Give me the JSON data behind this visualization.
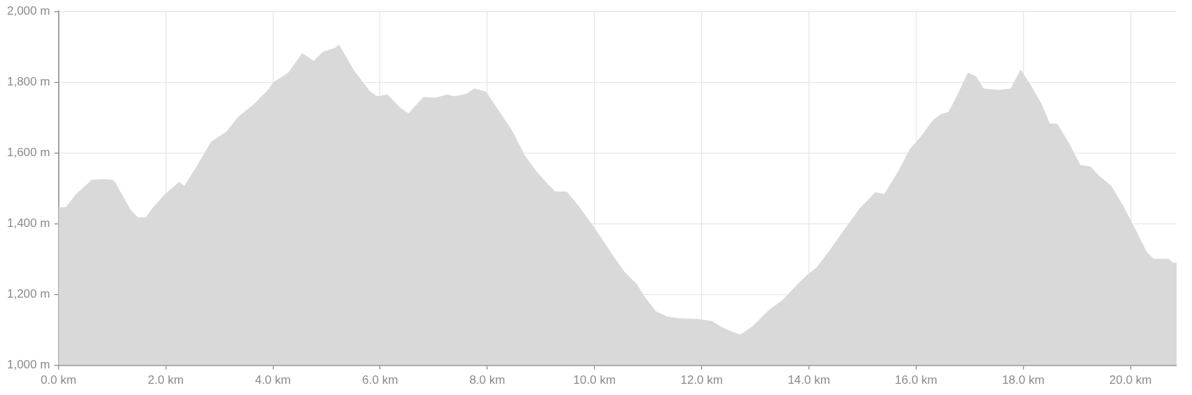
{
  "chart_data": {
    "type": "area",
    "x": [
      0,
      0.14,
      0.33,
      0.62,
      0.84,
      1.01,
      1.05,
      1.2,
      1.34,
      1.48,
      1.63,
      1.77,
      1.99,
      2.13,
      2.25,
      2.35,
      2.56,
      2.85,
      3.14,
      3.36,
      3.65,
      3.93,
      4.01,
      4.29,
      4.55,
      4.76,
      4.94,
      5.16,
      5.23,
      5.52,
      5.81,
      5.95,
      6.14,
      6.38,
      6.53,
      6.81,
      7.03,
      7.25,
      7.39,
      7.61,
      7.75,
      7.97,
      8.18,
      8.47,
      8.69,
      8.9,
      9.12,
      9.27,
      9.48,
      9.7,
      9.91,
      10.13,
      10.35,
      10.56,
      10.78,
      10.92,
      11.14,
      11.35,
      11.57,
      11.93,
      12.19,
      12.36,
      12.58,
      12.72,
      12.94,
      13.23,
      13.52,
      13.8,
      13.95,
      14.16,
      14.38,
      14.67,
      14.96,
      15.24,
      15.41,
      15.68,
      15.89,
      16.11,
      16.32,
      16.47,
      16.61,
      16.76,
      16.97,
      17.12,
      17.26,
      17.55,
      17.77,
      17.95,
      18.13,
      18.34,
      18.49,
      18.63,
      18.85,
      19.06,
      19.25,
      19.42,
      19.64,
      19.86,
      20.07,
      20.29,
      20.43,
      20.72,
      20.79,
      20.86
    ],
    "series": [
      {
        "color": "#d9d9d9",
        "values": [
          1446,
          1446,
          1483,
          1523,
          1525,
          1523,
          1517,
          1477,
          1439,
          1417,
          1417,
          1446,
          1483,
          1501,
          1517,
          1506,
          1556,
          1631,
          1660,
          1702,
          1737,
          1781,
          1799,
          1826,
          1881,
          1859,
          1885,
          1896,
          1905,
          1830,
          1773,
          1759,
          1764,
          1726,
          1711,
          1757,
          1755,
          1764,
          1759,
          1766,
          1781,
          1773,
          1726,
          1660,
          1594,
          1550,
          1512,
          1490,
          1490,
          1450,
          1406,
          1358,
          1307,
          1263,
          1230,
          1196,
          1152,
          1137,
          1132,
          1130,
          1124,
          1108,
          1093,
          1086,
          1108,
          1152,
          1185,
          1230,
          1252,
          1278,
          1322,
          1384,
          1444,
          1488,
          1483,
          1550,
          1611,
          1649,
          1693,
          1709,
          1715,
          1759,
          1826,
          1815,
          1781,
          1777,
          1781,
          1834,
          1792,
          1737,
          1682,
          1682,
          1627,
          1565,
          1561,
          1534,
          1506,
          1450,
          1389,
          1322,
          1300,
          1300,
          1289,
          1289
        ]
      }
    ],
    "xlim": [
      0,
      20.86
    ],
    "xticks": [
      {
        "value": 0,
        "label": "0.0 km"
      },
      {
        "value": 2,
        "label": "2.0 km"
      },
      {
        "value": 4,
        "label": "4.0 km"
      },
      {
        "value": 6,
        "label": "6.0 km"
      },
      {
        "value": 8,
        "label": "8.0 km"
      },
      {
        "value": 10,
        "label": "10.0 km"
      },
      {
        "value": 12,
        "label": "12.0 km"
      },
      {
        "value": 14,
        "label": "14.0 km"
      },
      {
        "value": 16,
        "label": "16.0 km"
      },
      {
        "value": 18,
        "label": "18.0 km"
      },
      {
        "value": 20,
        "label": "20.0 km"
      }
    ],
    "ylim": [
      1000,
      2000
    ],
    "yticks": [
      {
        "value": 1000,
        "label": "1,000 m"
      },
      {
        "value": 1200,
        "label": "1,200 m"
      },
      {
        "value": 1400,
        "label": "1,400 m"
      },
      {
        "value": 1600,
        "label": "1,600 m"
      },
      {
        "value": 1800,
        "label": "1,800 m"
      },
      {
        "value": 2000,
        "label": "2,000 m"
      }
    ],
    "grid": true
  }
}
